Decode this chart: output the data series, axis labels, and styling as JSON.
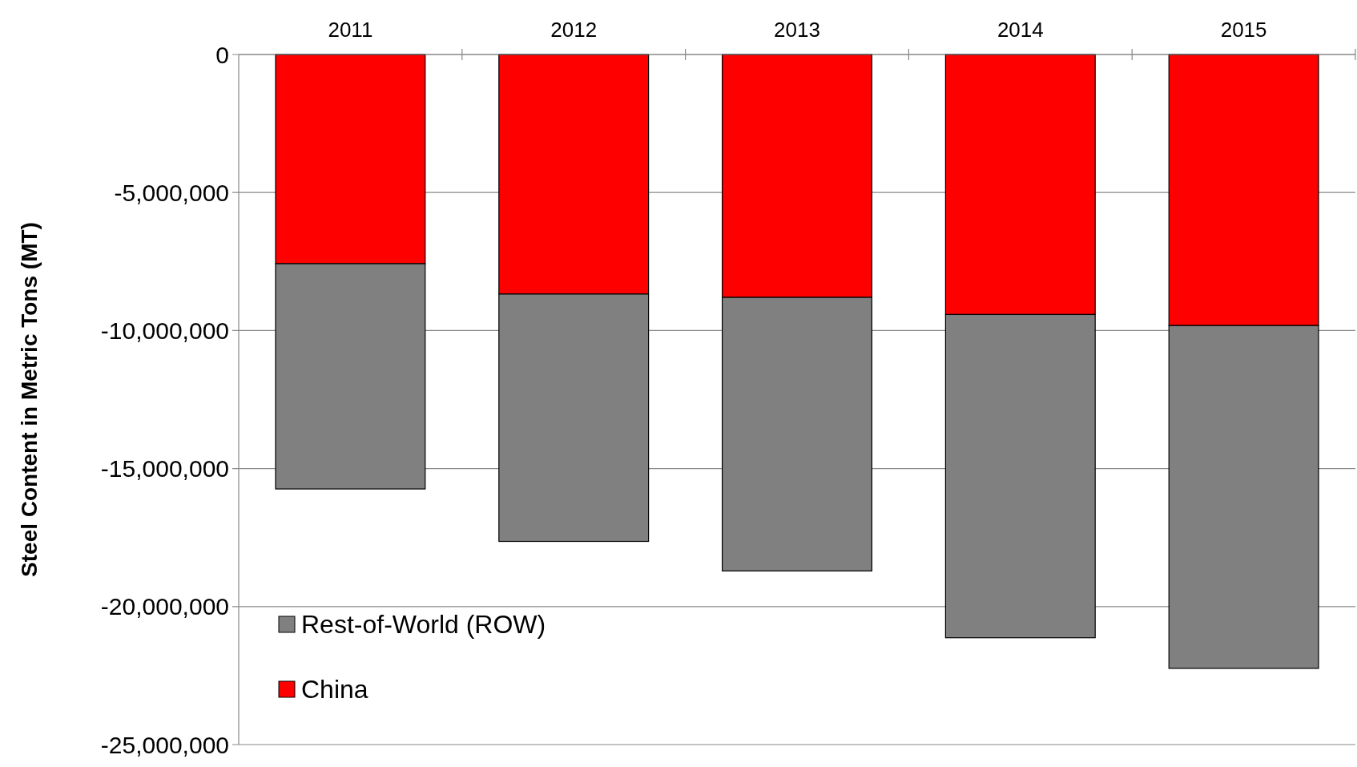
{
  "chart_data": {
    "type": "bar",
    "stacked": true,
    "ylabel": "Steel Content in Metric Tons (MT)",
    "categories": [
      "2011",
      "2012",
      "2013",
      "2014",
      "2015"
    ],
    "series": [
      {
        "name": "China",
        "color": "#ff0000",
        "values": [
          -7580000,
          -8680000,
          -8800000,
          -9420000,
          -9820000
        ]
      },
      {
        "name": "Rest-of-World (ROW)",
        "color": "#808080",
        "values": [
          -8160000,
          -8960000,
          -9910000,
          -11710000,
          -12420000
        ]
      }
    ],
    "ylim": [
      -25000000,
      0
    ],
    "yticks": [
      {
        "value": -25000000,
        "label": "-25,000,000"
      },
      {
        "value": -20000000,
        "label": "-20,000,000"
      },
      {
        "value": -15000000,
        "label": "-15,000,000"
      },
      {
        "value": -10000000,
        "label": "-10,000,000"
      },
      {
        "value": -5000000,
        "label": "-5,000,000"
      },
      0
    ],
    "grid": "y",
    "legend": "bottom left"
  }
}
